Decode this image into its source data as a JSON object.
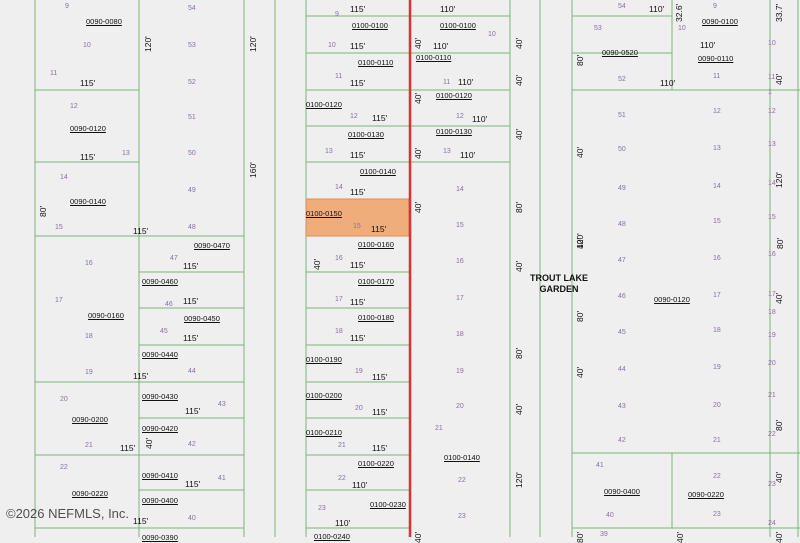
{
  "map": {
    "colors": {
      "background": "#efefef",
      "parcel_line": "#7bb47b",
      "highlight_fill": "#f0ad7c",
      "highlight_stroke": "#e08a50",
      "boundary_line": "#e03030"
    },
    "subdivision": {
      "line1": "TROUT LAKE",
      "line2": "GARDEN"
    },
    "watermark": "©2026 NEFMLS, Inc.",
    "parcel_ids": [
      "0090-0080",
      "0090-0120",
      "0090-0140",
      "0090-0160",
      "0090-0200",
      "0090-0220",
      "0090-0470",
      "0090-0460",
      "0090-0450",
      "0090-0440",
      "0090-0430",
      "0090-0420",
      "0090-0410",
      "0090-0400",
      "0090-0390",
      "0100-0100",
      "0100-0100",
      "0100-0110",
      "0100-0110",
      "0100-0120",
      "0100-0120",
      "0100-0130",
      "0100-0130",
      "0100-0140",
      "0100-0150",
      "0100-0160",
      "0100-0170",
      "0100-0180",
      "0100-0190",
      "0100-0200",
      "0100-0210",
      "0100-0220",
      "0100-0230",
      "0100-0240",
      "0100-0140",
      "0090-0100",
      "0090-0110",
      "0090-0520",
      "0090-0120",
      "0090-0400",
      "0090-0220"
    ],
    "dimensions": [
      "115'",
      "115'",
      "115'",
      "115'",
      "115'",
      "115'",
      "115'",
      "115'",
      "115'",
      "115'",
      "115'",
      "115'",
      "115'",
      "115'",
      "115'",
      "115'",
      "115'",
      "115'",
      "115'",
      "115'",
      "115'",
      "115'",
      "115'",
      "115'",
      "115'",
      "110'",
      "110'",
      "110'",
      "110'",
      "110'",
      "110'",
      "110'",
      "110'",
      "110'",
      "110'",
      "32.6'",
      "33.7'",
      "120'",
      "120'",
      "160'",
      "80'",
      "40'",
      "40'",
      "40'",
      "40'",
      "40'",
      "40'",
      "40'",
      "40'",
      "40'",
      "40'",
      "40'",
      "80'",
      "40'",
      "80'",
      "40'",
      "120'",
      "80'",
      "40'",
      "120'",
      "80'",
      "40'",
      "80'",
      "40'",
      "40'",
      "120'",
      "40'",
      "80'",
      "40'",
      "80'",
      "40'"
    ],
    "lot_numbers": [
      "9",
      "10",
      "11",
      "12",
      "13",
      "14",
      "15",
      "16",
      "17",
      "18",
      "19",
      "20",
      "21",
      "22",
      "54",
      "53",
      "52",
      "51",
      "50",
      "49",
      "48",
      "47",
      "46",
      "45",
      "44",
      "43",
      "42",
      "41",
      "40",
      "9",
      "10",
      "11",
      "12",
      "13",
      "14",
      "15",
      "16",
      "17",
      "18",
      "19",
      "20",
      "21",
      "22",
      "23",
      "10",
      "11",
      "12",
      "13",
      "14",
      "15",
      "16",
      "17",
      "18",
      "19",
      "20",
      "21",
      "22",
      "23",
      "54",
      "53",
      "52",
      "51",
      "50",
      "49",
      "48",
      "47",
      "46",
      "45",
      "44",
      "43",
      "42",
      "41",
      "40",
      "39",
      "9",
      "10",
      "11",
      "12",
      "13",
      "14",
      "15",
      "16",
      "17",
      "18",
      "19",
      "20",
      "21",
      "22",
      "23",
      "10",
      "11",
      "1",
      "12",
      "13",
      "14",
      "15",
      "16",
      "17",
      "18",
      "19",
      "20",
      "21",
      "22",
      "23",
      "24"
    ]
  }
}
